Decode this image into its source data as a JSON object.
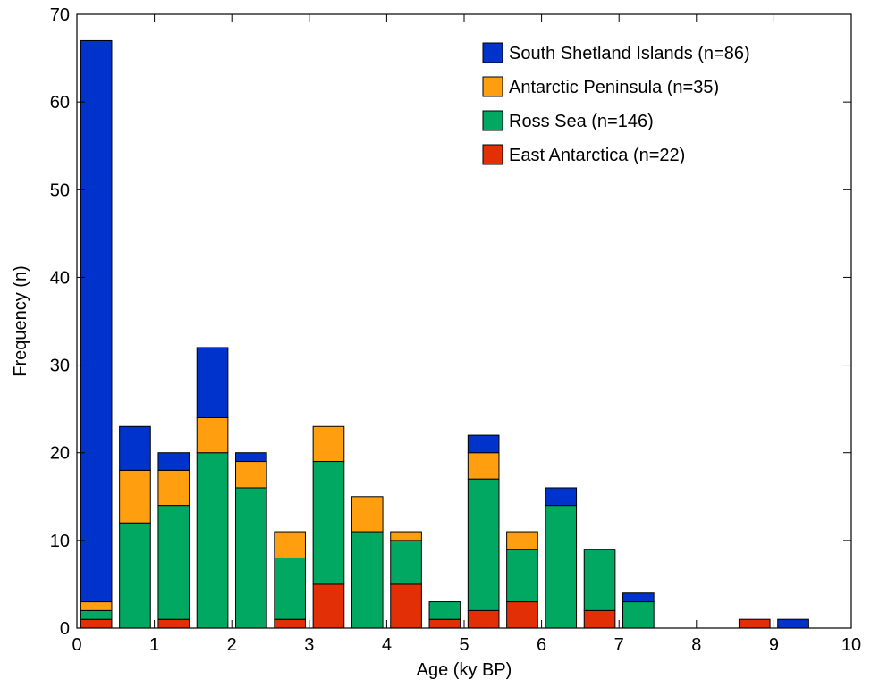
{
  "chart_data": {
    "type": "bar",
    "stacked": true,
    "xlabel": "Age (ky BP)",
    "ylabel": "Frequency (n)",
    "xlim": [
      0,
      10
    ],
    "ylim": [
      0,
      70
    ],
    "xticks": [
      0,
      1,
      2,
      3,
      4,
      5,
      6,
      7,
      8,
      9,
      10
    ],
    "yticks": [
      0,
      10,
      20,
      30,
      40,
      50,
      60,
      70
    ],
    "bin_width": 0.5,
    "bar_width": 0.4,
    "grid": false,
    "legend_position": "top-right",
    "x": [
      0.25,
      0.75,
      1.25,
      1.75,
      2.25,
      2.75,
      3.25,
      3.75,
      4.25,
      4.75,
      5.25,
      5.75,
      6.25,
      6.75,
      7.25,
      7.75,
      8.25,
      8.75,
      9.25
    ],
    "series": [
      {
        "name": "East Antarctica (n=22)",
        "color": "#e32f06",
        "values": [
          1,
          0,
          1,
          0,
          0,
          1,
          5,
          0,
          5,
          1,
          2,
          3,
          0,
          2,
          0,
          0,
          0,
          1,
          0
        ]
      },
      {
        "name": "Ross Sea (n=146)",
        "color": "#00a862",
        "values": [
          1,
          12,
          13,
          20,
          16,
          7,
          14,
          11,
          5,
          2,
          15,
          6,
          14,
          7,
          3,
          0,
          0,
          0,
          0
        ]
      },
      {
        "name": "Antarctic Peninsula (n=35)",
        "color": "#ff9f0f",
        "values": [
          1,
          6,
          4,
          4,
          3,
          3,
          4,
          4,
          1,
          0,
          3,
          2,
          0,
          0,
          0,
          0,
          0,
          0,
          0
        ]
      },
      {
        "name": "South Shetland Islands (n=86)",
        "color": "#0033cc",
        "values": [
          64,
          5,
          2,
          8,
          1,
          0,
          0,
          0,
          0,
          0,
          2,
          0,
          2,
          0,
          1,
          0,
          0,
          0,
          1
        ]
      }
    ],
    "legend_order": [
      3,
      2,
      1,
      0
    ]
  }
}
